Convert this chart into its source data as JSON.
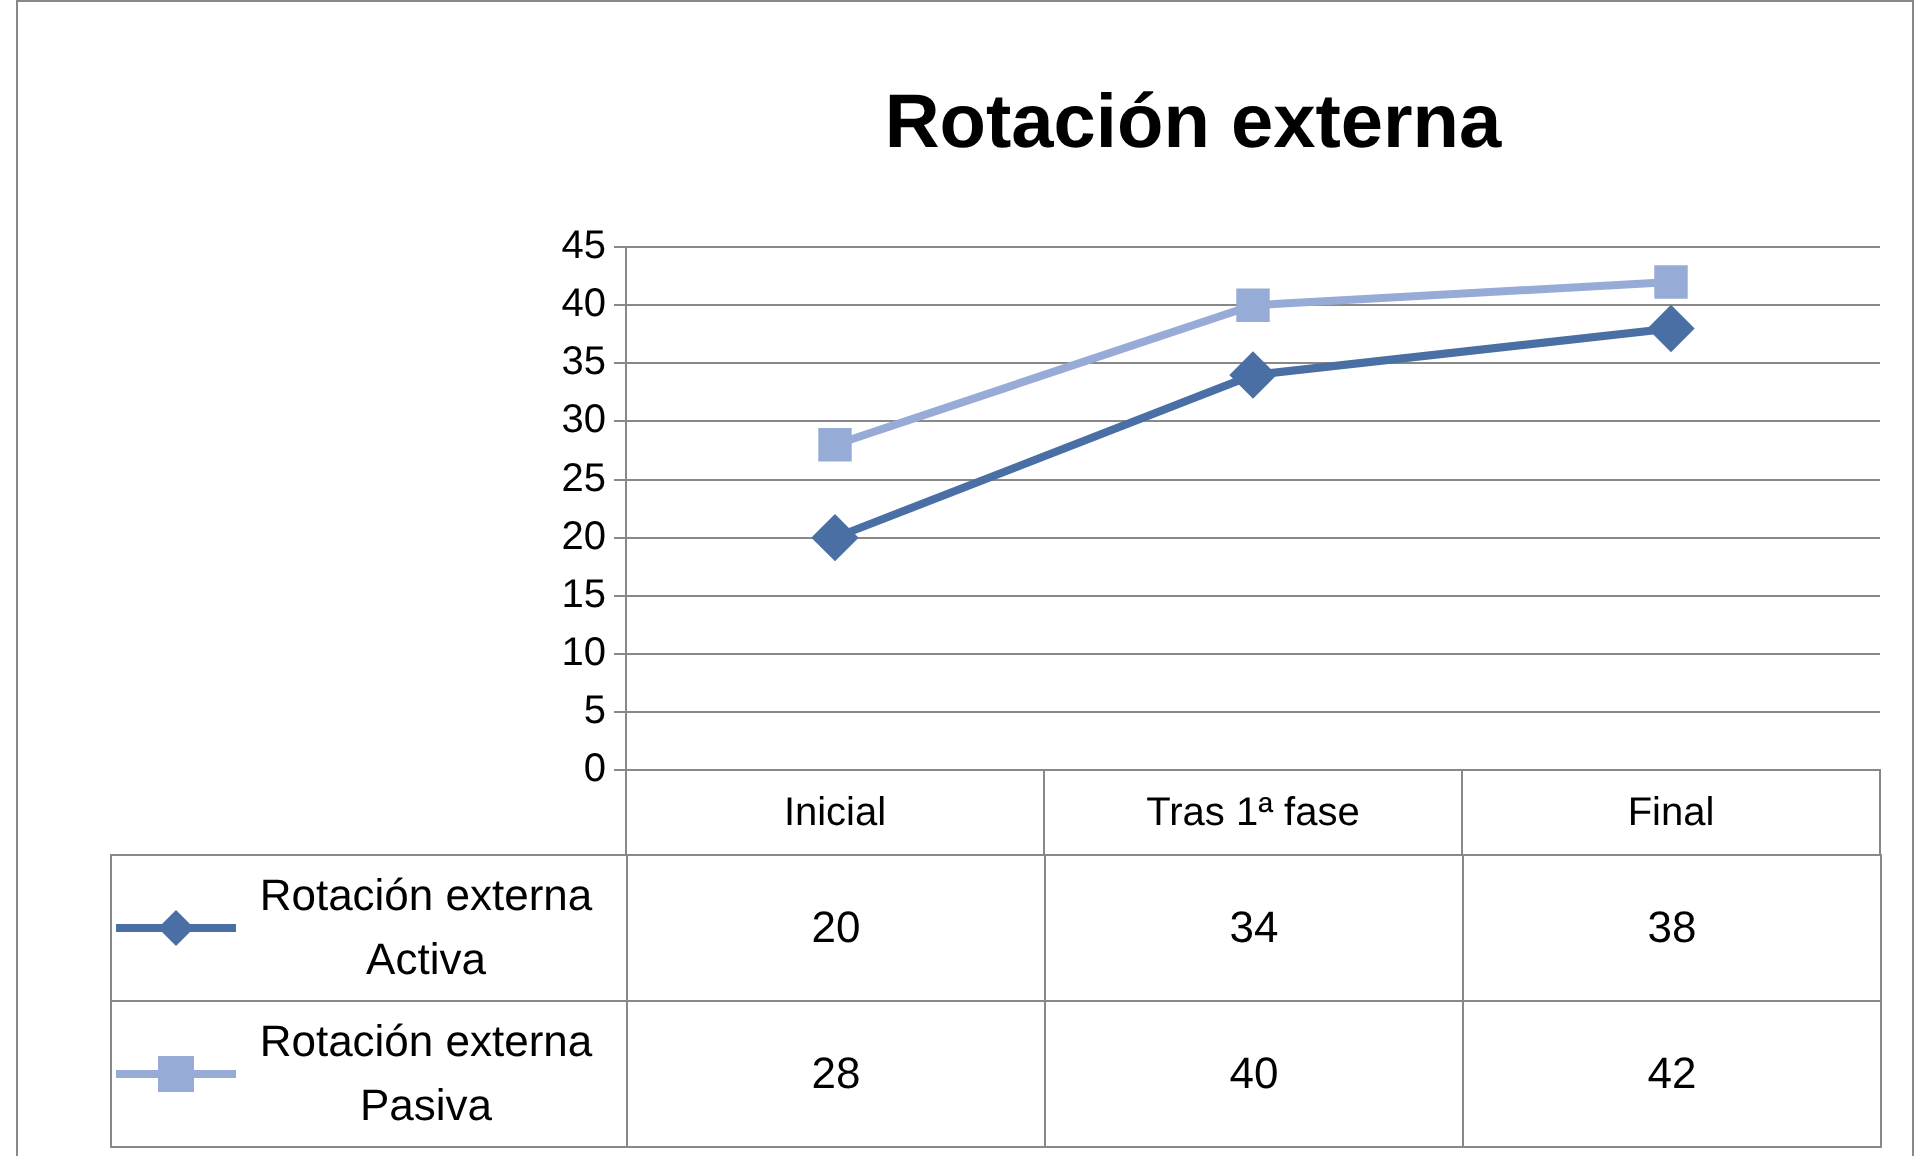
{
  "chart_data": {
    "type": "line",
    "title": "Rotación externa",
    "categories": [
      "Inicial",
      "Tras 1ª fase",
      "Final"
    ],
    "series": [
      {
        "name": "Rotación externa Activa",
        "color": "#4a6fa5",
        "marker": "diamond",
        "values": [
          20,
          34,
          38
        ]
      },
      {
        "name": "Rotación externa Pasiva",
        "color": "#96acd6",
        "marker": "square",
        "values": [
          28,
          40,
          42
        ]
      }
    ],
    "ylim": [
      0,
      45
    ],
    "yticks": [
      0,
      5,
      10,
      15,
      20,
      25,
      30,
      35,
      40,
      45
    ],
    "grid": "y",
    "legend": "bottom",
    "data_labels": true
  }
}
